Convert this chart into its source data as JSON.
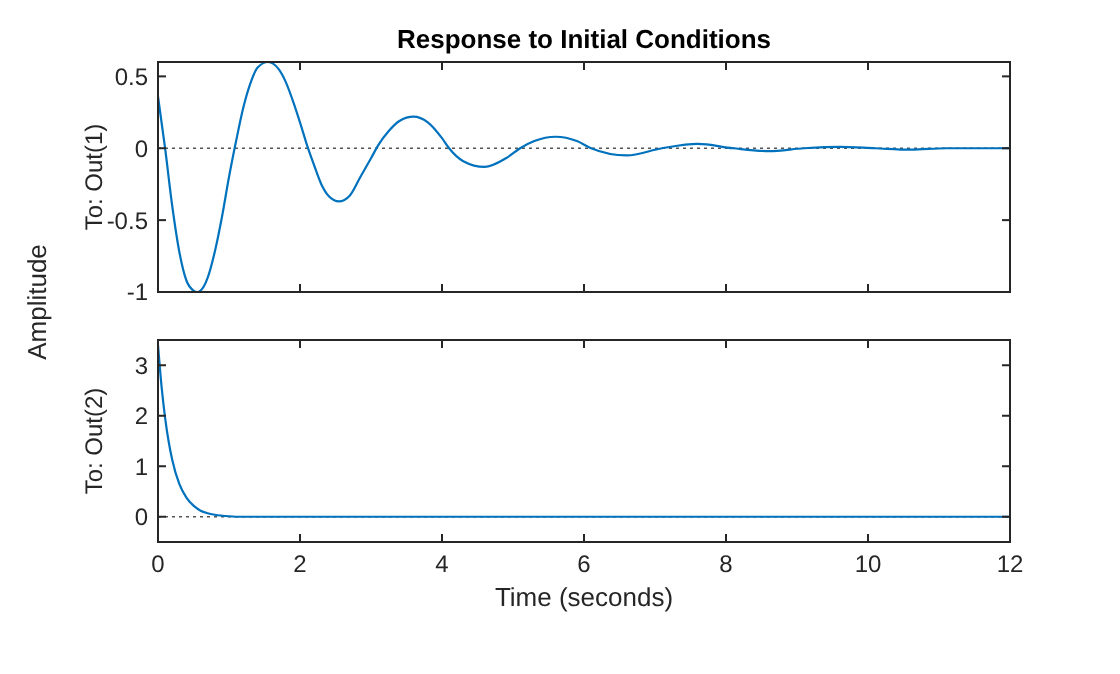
{
  "chart_data": [
    {
      "type": "line",
      "title": "Response to Initial Conditions",
      "ylabel": "To: Out(1)",
      "annotations": [
        "Amplitude"
      ],
      "tick_labels": "y",
      "grid": false,
      "xlim": [
        0,
        12
      ],
      "xticks": [
        0,
        2,
        4,
        6,
        8,
        10,
        12
      ],
      "ylim": [
        -1,
        0.6
      ],
      "yticks": [
        -1,
        -0.5,
        0,
        0.5
      ],
      "ref_lines": [
        {
          "axis": "y",
          "value": 0,
          "color": "#555555",
          "line_style": "dotted"
        }
      ],
      "series": [
        {
          "color": "#0072bd",
          "x": [
            0,
            0.1,
            0.2,
            0.3,
            0.4,
            0.5,
            0.55,
            0.6,
            0.7,
            0.8,
            0.9,
            1.0,
            1.1,
            1.2,
            1.3,
            1.4,
            1.55,
            1.7,
            1.8,
            1.9,
            2.0,
            2.1,
            2.2,
            2.3,
            2.4,
            2.55,
            2.7,
            2.85,
            3.0,
            3.1,
            3.25,
            3.4,
            3.6,
            3.8,
            4.0,
            4.1,
            4.3,
            4.6,
            4.9,
            5.1,
            5.3,
            5.6,
            5.9,
            6.1,
            6.6,
            7.1,
            7.6,
            8.1,
            8.6,
            9.1,
            9.6,
            10.1,
            10.6,
            11.1,
            11.6,
            12
          ],
          "values": [
            0.36,
            0.0,
            -0.4,
            -0.72,
            -0.92,
            -0.99,
            -1.0,
            -0.99,
            -0.9,
            -0.72,
            -0.48,
            -0.2,
            0.05,
            0.28,
            0.45,
            0.56,
            0.6,
            0.55,
            0.46,
            0.33,
            0.18,
            0.02,
            -0.12,
            -0.25,
            -0.33,
            -0.37,
            -0.33,
            -0.2,
            -0.07,
            0.02,
            0.12,
            0.19,
            0.22,
            0.18,
            0.07,
            0.0,
            -0.09,
            -0.13,
            -0.07,
            0.0,
            0.05,
            0.08,
            0.05,
            0.0,
            -0.05,
            0.0,
            0.03,
            0.0,
            -0.02,
            0.0,
            0.01,
            0.0,
            -0.01,
            0.0,
            0.0,
            0.0
          ]
        }
      ]
    },
    {
      "type": "line",
      "ylabel": "To: Out(2)",
      "xlabel": "Time (seconds)",
      "grid": false,
      "xlim": [
        0,
        12
      ],
      "xticks": [
        0,
        2,
        4,
        6,
        8,
        10,
        12
      ],
      "ylim": [
        -0.5,
        3.5
      ],
      "yticks": [
        0,
        1,
        2,
        3
      ],
      "ref_lines": [
        {
          "axis": "y",
          "value": 0,
          "color": "#555555",
          "line_style": "dotted"
        }
      ],
      "series": [
        {
          "color": "#0072bd",
          "x": [
            0,
            0.05,
            0.1,
            0.15,
            0.2,
            0.3,
            0.4,
            0.5,
            0.6,
            0.7,
            0.8,
            1.0,
            1.2,
            12
          ],
          "values": [
            3.4,
            2.58,
            1.96,
            1.49,
            1.13,
            0.65,
            0.38,
            0.22,
            0.12,
            0.07,
            0.04,
            0.01,
            0.0,
            0.0
          ]
        }
      ]
    }
  ]
}
